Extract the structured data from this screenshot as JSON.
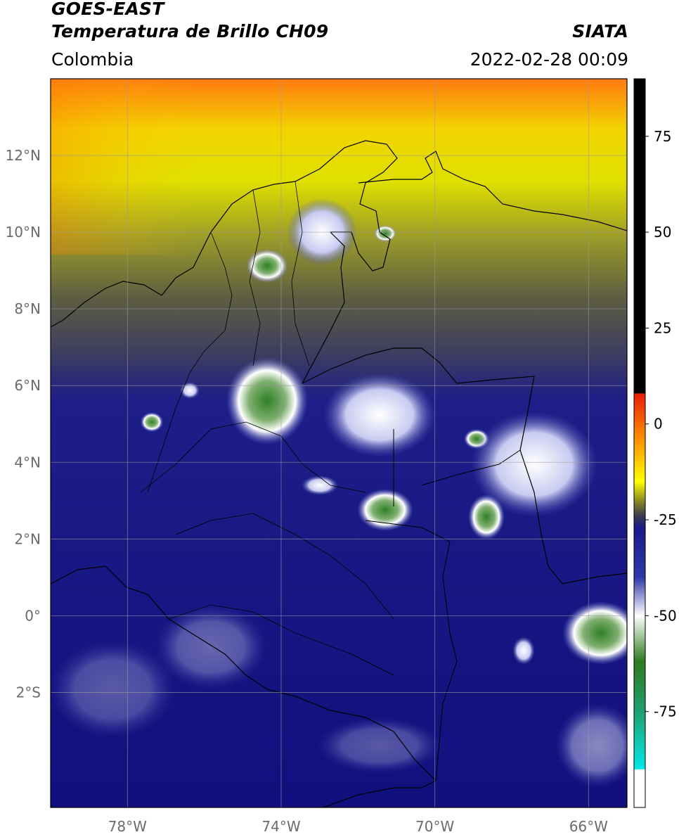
{
  "header": {
    "satellite": "GOES-EAST",
    "product": "Temperatura de Brillo CH09",
    "agency": "SIATA",
    "region": "Colombia",
    "timestamp": "2022-02-28 00:09"
  },
  "map": {
    "lon_range": [
      -80,
      -65
    ],
    "lat_range": [
      -5,
      14
    ],
    "lon_ticks": [
      {
        "value": -78,
        "label": "78°W"
      },
      {
        "value": -74,
        "label": "74°W"
      },
      {
        "value": -70,
        "label": "70°W"
      },
      {
        "value": -66,
        "label": "66°W"
      }
    ],
    "lat_ticks": [
      {
        "value": 12,
        "label": "12°N"
      },
      {
        "value": 10,
        "label": "10°N"
      },
      {
        "value": 8,
        "label": "8°N"
      },
      {
        "value": 6,
        "label": "6°N"
      },
      {
        "value": 4,
        "label": "4°N"
      },
      {
        "value": 2,
        "label": "2°N"
      },
      {
        "value": 0,
        "label": "0°"
      },
      {
        "value": -2,
        "label": "2°S"
      }
    ],
    "grid": true
  },
  "colorbar": {
    "range": [
      -100,
      90
    ],
    "ticks": [
      {
        "value": 75,
        "label": "75"
      },
      {
        "value": 50,
        "label": "50"
      },
      {
        "value": 25,
        "label": "25"
      },
      {
        "value": 0,
        "label": "0"
      },
      {
        "value": -25,
        "label": "-25"
      },
      {
        "value": -50,
        "label": "-50"
      },
      {
        "value": -75,
        "label": "-75"
      }
    ],
    "stops": [
      {
        "value": 90,
        "color": "#000000"
      },
      {
        "value": 8,
        "color": "#000000"
      },
      {
        "value": 7.9,
        "color": "#e81e0a"
      },
      {
        "value": -5,
        "color": "#ff9a00"
      },
      {
        "value": -15,
        "color": "#ffff00"
      },
      {
        "value": -20,
        "color": "#8a8a1e"
      },
      {
        "value": -24,
        "color": "#3a3a50"
      },
      {
        "value": -27,
        "color": "#1a1a8a"
      },
      {
        "value": -40,
        "color": "#3038a8"
      },
      {
        "value": -50,
        "color": "#ffffff"
      },
      {
        "value": -62,
        "color": "#2d7a1e"
      },
      {
        "value": -75,
        "color": "#20a070"
      },
      {
        "value": -90,
        "color": "#00e8e8"
      },
      {
        "value": -90.1,
        "color": "#ffffff"
      },
      {
        "value": -100,
        "color": "#ffffff"
      }
    ]
  }
}
